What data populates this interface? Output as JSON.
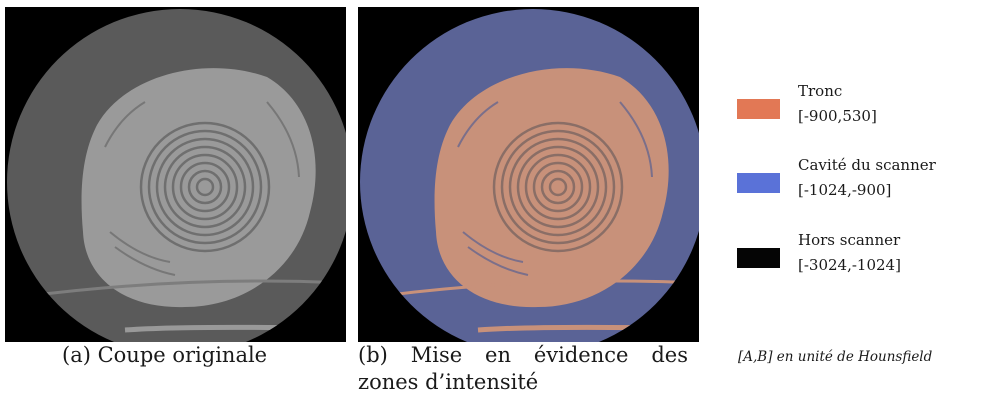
{
  "figure": {
    "panel_a": {
      "caption": "(a) Coupe originale"
    },
    "panel_b": {
      "caption_line1": [
        "(b)",
        "Mise",
        "en",
        "évidence",
        "des"
      ],
      "caption_line2": "zones d’intensité"
    }
  },
  "legend": {
    "items": [
      {
        "name": "Tronc",
        "range": "[-900,530]",
        "color": "#e27855"
      },
      {
        "name": "Cavité du scanner",
        "range": "[-1024,-900]",
        "color": "#5a72d8"
      },
      {
        "name": "Hors scanner",
        "range": "[-3024,-1024]",
        "color": "#050505"
      }
    ],
    "note": "[A,B] en unité de Hounsfield"
  },
  "colors": {
    "scan_gray": "#5a5a5a",
    "trunk_gray": "#9a9a9a",
    "cavity_blue": "#5a6396",
    "trunk_orange": "#c8917a"
  }
}
